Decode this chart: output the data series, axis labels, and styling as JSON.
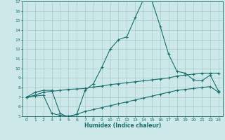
{
  "xlabel": "Humidex (Indice chaleur)",
  "xlim": [
    -0.5,
    23.5
  ],
  "ylim": [
    5,
    17
  ],
  "xticks": [
    0,
    1,
    2,
    3,
    4,
    5,
    6,
    7,
    8,
    9,
    10,
    11,
    12,
    13,
    14,
    15,
    16,
    17,
    18,
    19,
    20,
    21,
    22,
    23
  ],
  "yticks": [
    5,
    6,
    7,
    8,
    9,
    10,
    11,
    12,
    13,
    14,
    15,
    16,
    17
  ],
  "bg_color": "#cce8e8",
  "line_color": "#1a6e6e",
  "grid_color": "#aacccc",
  "line1_x": [
    0,
    1,
    2,
    3,
    4,
    5,
    6,
    7,
    8,
    9,
    10,
    11,
    12,
    13,
    14,
    15,
    16,
    17,
    18,
    19,
    20,
    21,
    22,
    23
  ],
  "line1_y": [
    7.0,
    7.5,
    7.7,
    7.7,
    5.3,
    4.9,
    5.2,
    7.7,
    8.4,
    10.1,
    12.0,
    13.0,
    13.3,
    15.3,
    17.2,
    17.1,
    14.4,
    11.5,
    9.7,
    9.5,
    8.8,
    8.7,
    9.3,
    7.6
  ],
  "line2_x": [
    0,
    1,
    2,
    3,
    4,
    5,
    6,
    7,
    8,
    9,
    10,
    11,
    12,
    13,
    14,
    15,
    16,
    17,
    18,
    19,
    20,
    21,
    22,
    23
  ],
  "line2_y": [
    7.0,
    7.2,
    7.5,
    7.6,
    7.7,
    7.8,
    7.85,
    7.9,
    8.05,
    8.15,
    8.3,
    8.4,
    8.5,
    8.6,
    8.7,
    8.8,
    8.9,
    9.0,
    9.2,
    9.3,
    9.4,
    9.5,
    9.5,
    9.5
  ],
  "line3_x": [
    0,
    1,
    2,
    3,
    4,
    5,
    6,
    7,
    8,
    9,
    10,
    11,
    12,
    13,
    14,
    15,
    16,
    17,
    18,
    19,
    20,
    21,
    22,
    23
  ],
  "line3_y": [
    7.0,
    7.1,
    7.2,
    5.3,
    5.1,
    5.0,
    5.2,
    5.5,
    5.7,
    5.9,
    6.1,
    6.3,
    6.5,
    6.7,
    6.9,
    7.1,
    7.3,
    7.5,
    7.7,
    7.8,
    7.9,
    8.0,
    8.1,
    7.5
  ]
}
